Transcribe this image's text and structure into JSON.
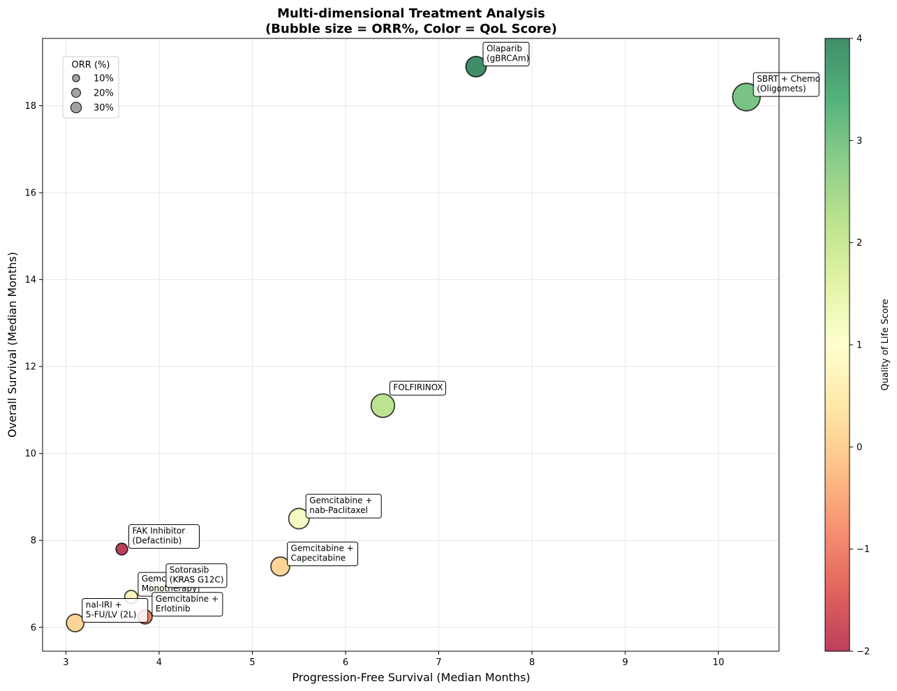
{
  "chart_data": {
    "type": "scatter",
    "title": [
      "Multi-dimensional Treatment Analysis",
      "(Bubble size = ORR%, Color = QoL Score)"
    ],
    "xlabel": "Progression-Free Survival (Median Months)",
    "ylabel": "Overall Survival (Median Months)",
    "xlim": [
      2.75,
      10.65
    ],
    "ylim": [
      5.45,
      19.55
    ],
    "xticks": [
      3,
      4,
      5,
      6,
      7,
      8,
      9,
      10
    ],
    "yticks": [
      6,
      8,
      10,
      12,
      14,
      16,
      18
    ],
    "grid": true,
    "colorbar": {
      "label": "Quality of Life Score",
      "range": [
        -2,
        4
      ],
      "ticks": [
        -2,
        -1,
        0,
        1,
        2,
        3,
        4
      ],
      "colormap": [
        "#a50026",
        "#d73027",
        "#f46d43",
        "#fdae61",
        "#fee08b",
        "#ffffbf",
        "#d9ef8b",
        "#a6d96a",
        "#66bd63",
        "#1a9850",
        "#006837"
      ]
    },
    "size_legend": {
      "title": "ORR (%)",
      "placement": "upper-left",
      "entries": [
        {
          "label": "10%",
          "orr": 10
        },
        {
          "label": "20%",
          "orr": 20
        },
        {
          "label": "30%",
          "orr": 30
        }
      ]
    },
    "points": [
      {
        "label": "Olaparib\n(gBRCAm)",
        "pfs": 7.4,
        "os": 18.9,
        "orr": 23,
        "qol": 4.0
      },
      {
        "label": "SBRT + Chemo\n(Oligomets)",
        "pfs": 10.3,
        "os": 18.2,
        "orr": 45,
        "qol": 3.0
      },
      {
        "label": "FOLFIRINOX",
        "pfs": 6.4,
        "os": 11.1,
        "orr": 31.6,
        "qol": 2.2
      },
      {
        "label": "Gemcitabine +\nnab-Paclitaxel",
        "pfs": 5.5,
        "os": 8.5,
        "orr": 23,
        "qol": 1.2
      },
      {
        "label": "Gemcitabine +\nCapecitabine",
        "pfs": 5.3,
        "os": 7.4,
        "orr": 19,
        "qol": 0.1
      },
      {
        "label": "FAK Inhibitor\n(Defactinib)",
        "pfs": 3.6,
        "os": 7.8,
        "orr": 5,
        "qol": -2.0
      },
      {
        "label": "Gemcitabine\nMonotherapy",
        "pfs": 3.7,
        "os": 6.7,
        "orr": 7,
        "qol": 0.7
      },
      {
        "label": "Sotorasib\n(KRAS G12C)",
        "pfs": 4.0,
        "os": 6.9,
        "orr": 21,
        "qol": 0.5
      },
      {
        "label": "Gemcitabine +\nErlotinib",
        "pfs": 3.85,
        "os": 6.24,
        "orr": 9,
        "qol": -1.0
      },
      {
        "label": "nal-IRI +\n5-FU/LV (2L)",
        "pfs": 3.1,
        "os": 6.1,
        "orr": 16,
        "qol": 0.1
      }
    ]
  }
}
